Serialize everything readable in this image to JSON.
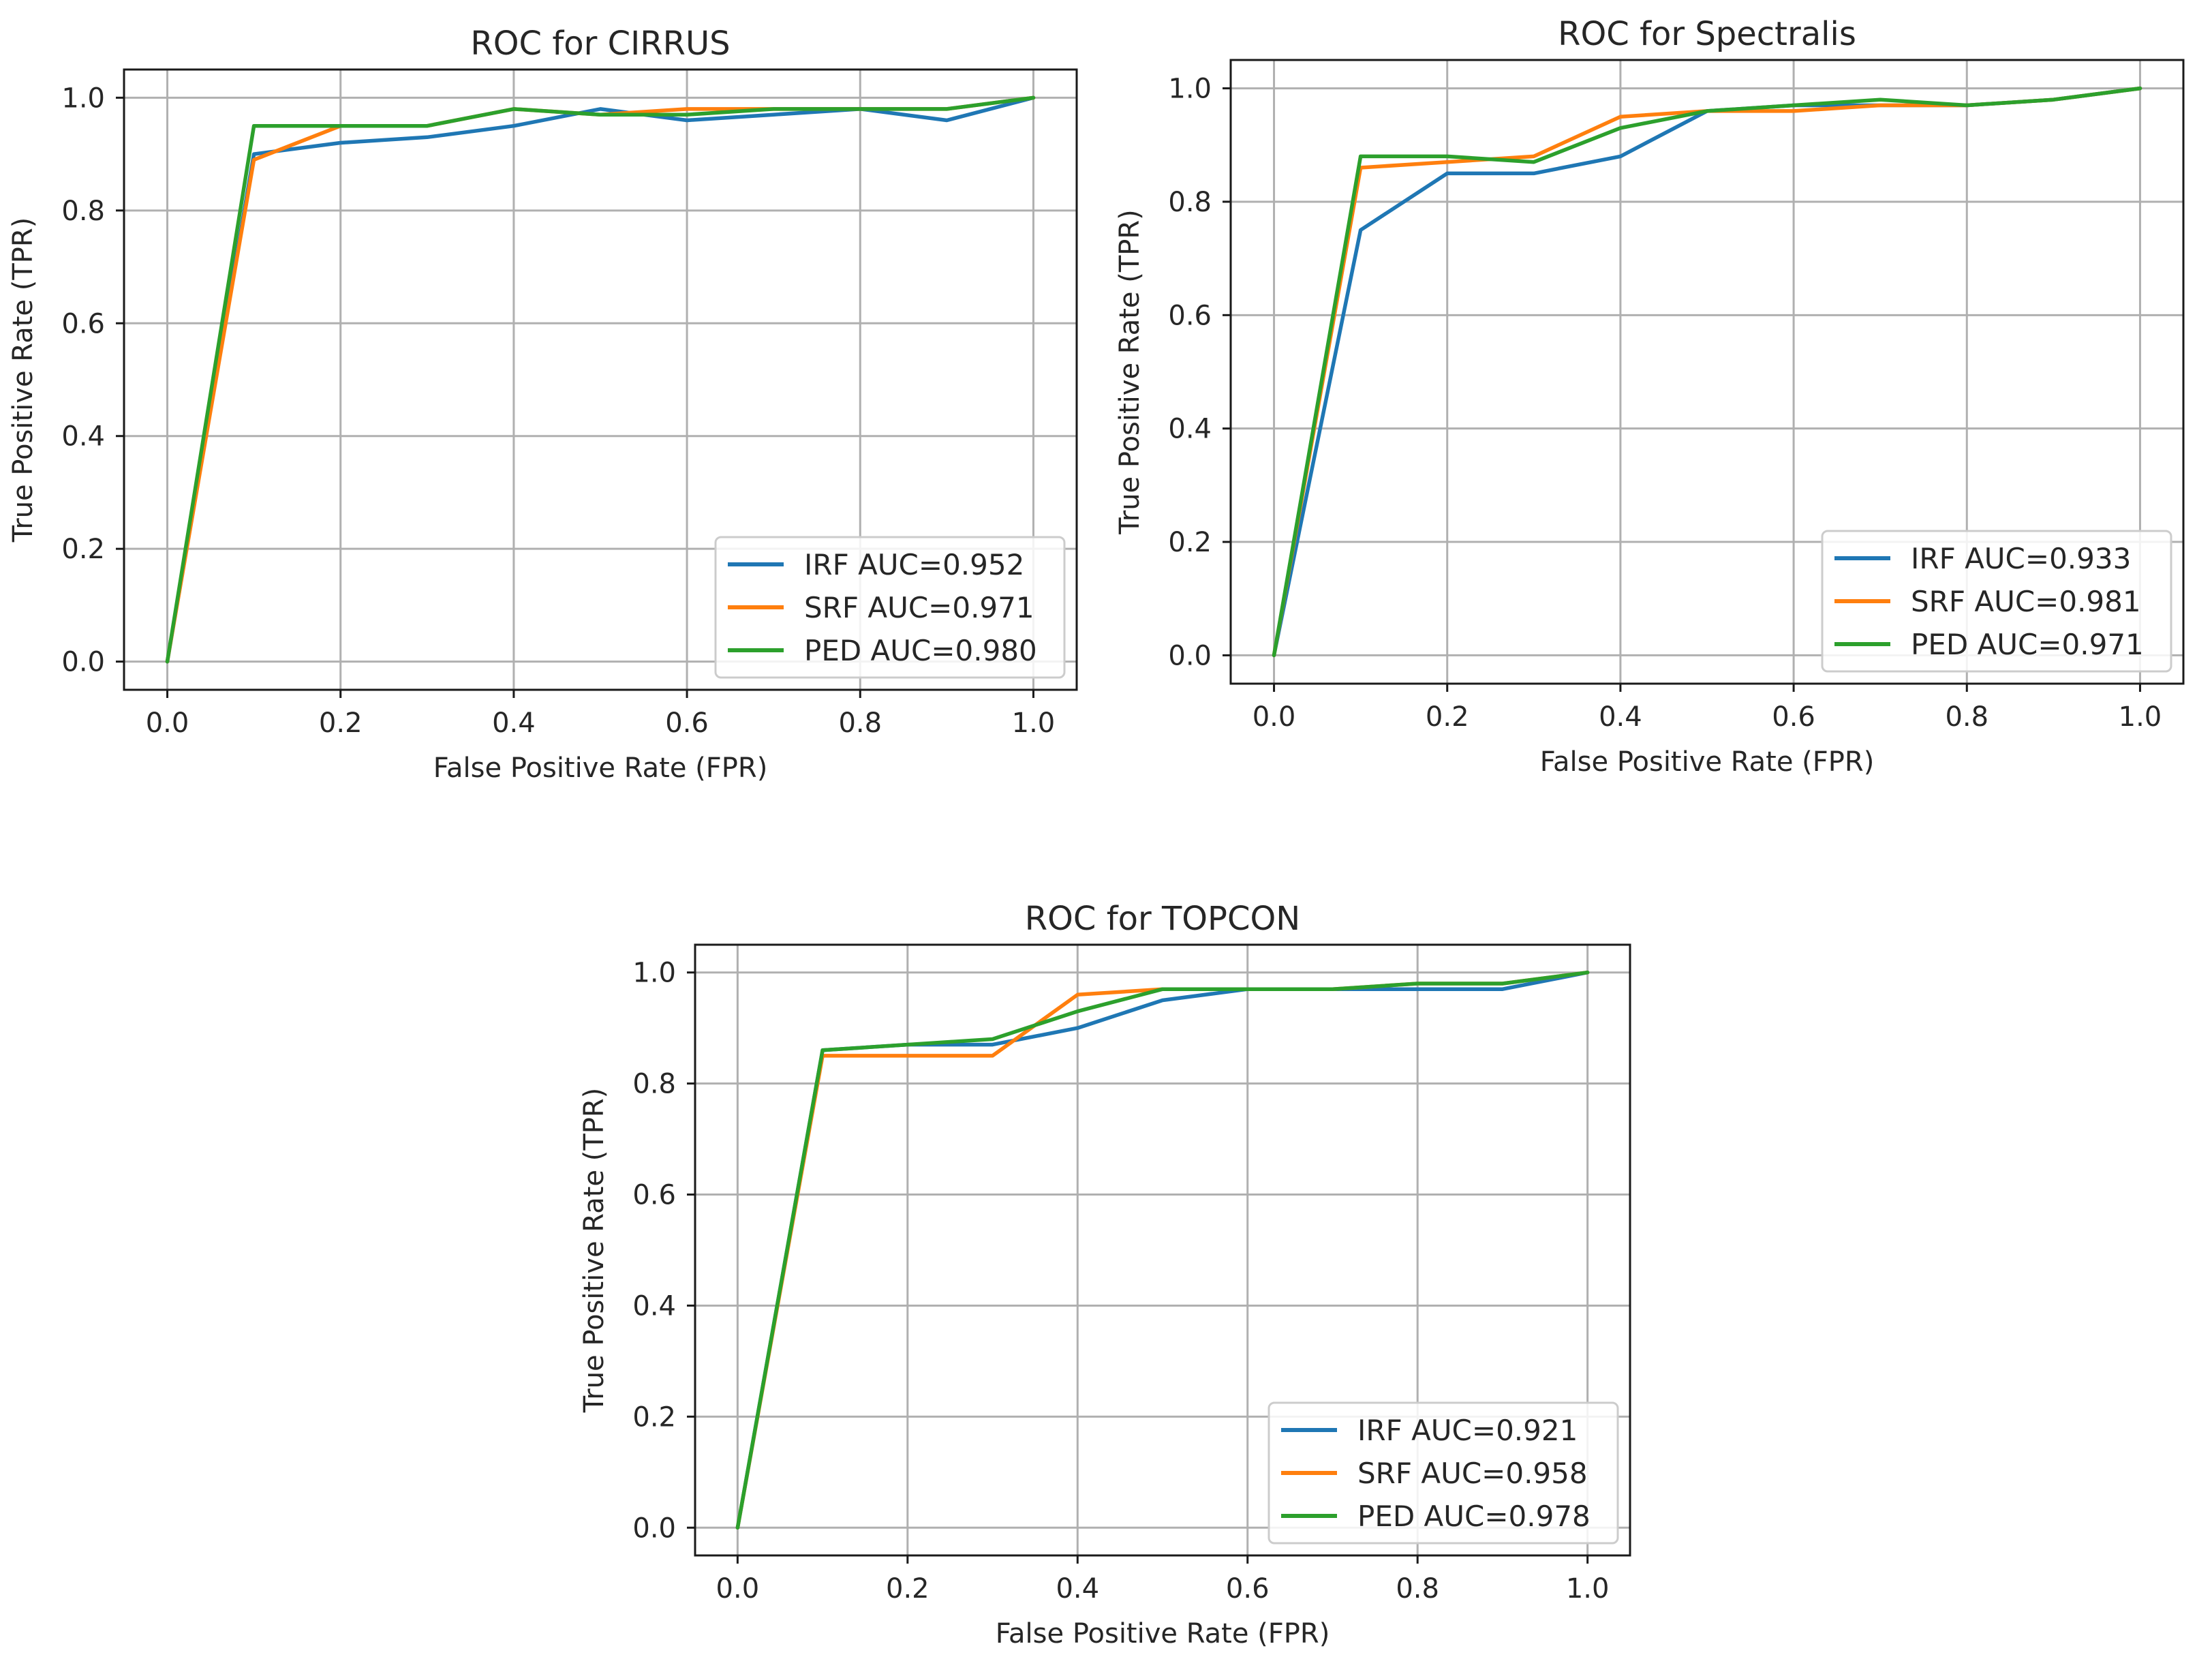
{
  "chart_data": [
    {
      "type": "line",
      "title": "ROC for CIRRUS",
      "xlabel": "False Positive Rate (FPR)",
      "ylabel": "True Positive Rate (TPR)",
      "xlim": [
        -0.05,
        1.05
      ],
      "ylim": [
        -0.05,
        1.05
      ],
      "grid": true,
      "legend_position": "lower-right",
      "xticks": [
        0.0,
        0.2,
        0.4,
        0.6,
        0.8,
        1.0
      ],
      "xtick_labels": [
        "0.0",
        "0.2",
        "0.4",
        "0.6",
        "0.8",
        "1.0"
      ],
      "yticks": [
        0.0,
        0.2,
        0.4,
        0.6,
        0.8,
        1.0
      ],
      "ytick_labels": [
        "0.0",
        "0.2",
        "0.4",
        "0.6",
        "0.8",
        "1.0"
      ],
      "x": [
        0.0,
        0.1,
        0.2,
        0.3,
        0.4,
        0.5,
        0.6,
        0.7,
        0.8,
        0.9,
        1.0
      ],
      "series": [
        {
          "name": "IRF AUC=0.952",
          "color": "#1f77b4",
          "values": [
            0.0,
            0.9,
            0.92,
            0.93,
            0.95,
            0.98,
            0.96,
            0.97,
            0.98,
            0.96,
            1.0
          ]
        },
        {
          "name": "SRF AUC=0.971",
          "color": "#ff7f0e",
          "values": [
            0.0,
            0.89,
            0.95,
            0.95,
            0.98,
            0.97,
            0.98,
            0.98,
            0.98,
            0.98,
            1.0
          ]
        },
        {
          "name": "PED AUC=0.980",
          "color": "#2ca02c",
          "values": [
            0.0,
            0.95,
            0.95,
            0.95,
            0.98,
            0.97,
            0.97,
            0.98,
            0.98,
            0.98,
            1.0
          ]
        }
      ]
    },
    {
      "type": "line",
      "title": "ROC for Spectralis",
      "xlabel": "False Positive Rate (FPR)",
      "ylabel": "True Positive Rate (TPR)",
      "xlim": [
        -0.05,
        1.05
      ],
      "ylim": [
        -0.05,
        1.05
      ],
      "grid": true,
      "legend_position": "lower-right",
      "xticks": [
        0.0,
        0.2,
        0.4,
        0.6,
        0.8,
        1.0
      ],
      "xtick_labels": [
        "0.0",
        "0.2",
        "0.4",
        "0.6",
        "0.8",
        "1.0"
      ],
      "yticks": [
        0.0,
        0.2,
        0.4,
        0.6,
        0.8,
        1.0
      ],
      "ytick_labels": [
        "0.0",
        "0.2",
        "0.4",
        "0.6",
        "0.8",
        "1.0"
      ],
      "x": [
        0.0,
        0.1,
        0.2,
        0.3,
        0.4,
        0.5,
        0.6,
        0.7,
        0.8,
        0.9,
        1.0
      ],
      "series": [
        {
          "name": "IRF AUC=0.933",
          "color": "#1f77b4",
          "values": [
            0.0,
            0.75,
            0.85,
            0.85,
            0.88,
            0.96,
            0.97,
            0.97,
            0.97,
            0.98,
            1.0
          ]
        },
        {
          "name": "SRF AUC=0.981",
          "color": "#ff7f0e",
          "values": [
            0.0,
            0.86,
            0.87,
            0.88,
            0.95,
            0.96,
            0.96,
            0.97,
            0.97,
            0.98,
            1.0
          ]
        },
        {
          "name": "PED AUC=0.971",
          "color": "#2ca02c",
          "values": [
            0.0,
            0.88,
            0.88,
            0.87,
            0.93,
            0.96,
            0.97,
            0.98,
            0.97,
            0.98,
            1.0
          ]
        }
      ]
    },
    {
      "type": "line",
      "title": "ROC for TOPCON",
      "xlabel": "False Positive Rate (FPR)",
      "ylabel": "True Positive Rate (TPR)",
      "xlim": [
        -0.05,
        1.05
      ],
      "ylim": [
        -0.05,
        1.05
      ],
      "grid": true,
      "legend_position": "lower-right",
      "xticks": [
        0.0,
        0.2,
        0.4,
        0.6,
        0.8,
        1.0
      ],
      "xtick_labels": [
        "0.0",
        "0.2",
        "0.4",
        "0.6",
        "0.8",
        "1.0"
      ],
      "yticks": [
        0.0,
        0.2,
        0.4,
        0.6,
        0.8,
        1.0
      ],
      "ytick_labels": [
        "0.0",
        "0.2",
        "0.4",
        "0.6",
        "0.8",
        "1.0"
      ],
      "x": [
        0.0,
        0.1,
        0.2,
        0.3,
        0.4,
        0.5,
        0.6,
        0.7,
        0.8,
        0.9,
        1.0
      ],
      "series": [
        {
          "name": "IRF AUC=0.921",
          "color": "#1f77b4",
          "values": [
            0.0,
            0.86,
            0.87,
            0.87,
            0.9,
            0.95,
            0.97,
            0.97,
            0.97,
            0.97,
            1.0
          ]
        },
        {
          "name": "SRF AUC=0.958",
          "color": "#ff7f0e",
          "values": [
            0.0,
            0.85,
            0.85,
            0.85,
            0.96,
            0.97,
            0.97,
            0.97,
            0.98,
            0.98,
            1.0
          ]
        },
        {
          "name": "PED AUC=0.978",
          "color": "#2ca02c",
          "values": [
            0.0,
            0.86,
            0.87,
            0.88,
            0.93,
            0.97,
            0.97,
            0.97,
            0.98,
            0.98,
            1.0
          ]
        }
      ]
    }
  ]
}
